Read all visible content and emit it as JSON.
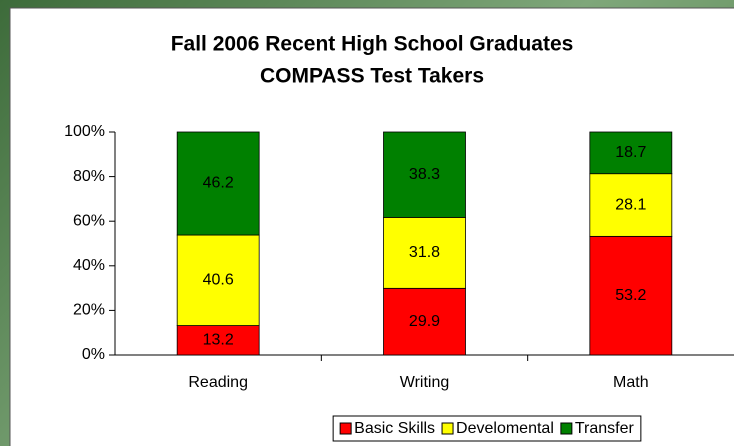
{
  "chart_data": {
    "type": "stacked_bar_100",
    "title": [
      "Fall 2006 Recent High School Graduates",
      "COMPASS Test Takers"
    ],
    "categories": [
      "Reading",
      "Writing",
      "Math"
    ],
    "series": [
      {
        "name": "Basic Skills",
        "color": "#ff0000",
        "values": [
          13.2,
          29.9,
          53.2
        ]
      },
      {
        "name": "Develomental",
        "color": "#ffff00",
        "values": [
          40.6,
          31.8,
          28.1
        ]
      },
      {
        "name": "Transfer",
        "color": "#008000",
        "values": [
          46.2,
          38.3,
          18.7
        ]
      }
    ],
    "ylim": [
      0,
      100
    ],
    "yticks": [
      {
        "value": 0,
        "label": "0%"
      },
      {
        "value": 20,
        "label": "20%"
      },
      {
        "value": 40,
        "label": "40%"
      },
      {
        "value": 60,
        "label": "60%"
      },
      {
        "value": 80,
        "label": "80%"
      },
      {
        "value": 100,
        "label": "100%"
      }
    ],
    "legend": "bottom"
  }
}
